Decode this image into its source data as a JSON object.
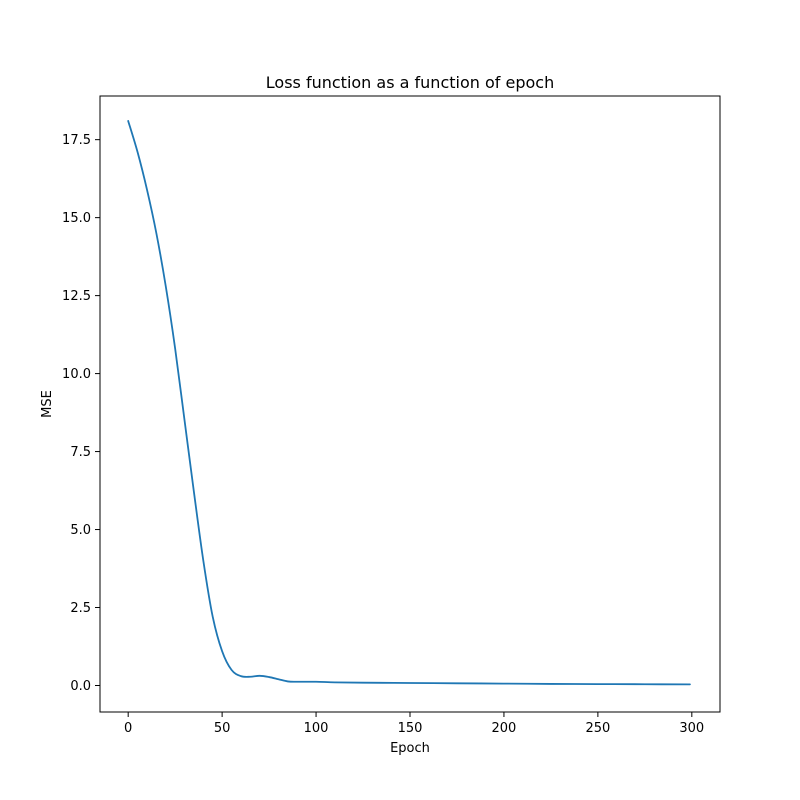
{
  "chart_data": {
    "type": "line",
    "title": "Loss function as a function of epoch",
    "xlabel": "Epoch",
    "ylabel": "MSE",
    "xlim": [
      -15.0,
      315.0
    ],
    "ylim": [
      -0.85,
      18.9
    ],
    "x_ticks": [
      0,
      50,
      100,
      150,
      200,
      250,
      300
    ],
    "x_tick_labels": [
      "0",
      "50",
      "100",
      "150",
      "200",
      "250",
      "300"
    ],
    "y_ticks": [
      0.0,
      2.5,
      5.0,
      7.5,
      10.0,
      12.5,
      15.0,
      17.5
    ],
    "y_tick_labels": [
      "0.0",
      "2.5",
      "5.0",
      "7.5",
      "10.0",
      "12.5",
      "15.0",
      "17.5"
    ],
    "grid": false,
    "series": [
      {
        "color": "#1f77b4",
        "x": [
          0,
          5,
          10,
          15,
          20,
          25,
          30,
          35,
          40,
          45,
          50,
          55,
          60,
          65,
          70,
          75,
          80,
          85,
          90,
          100,
          110,
          125,
          150,
          175,
          200,
          225,
          250,
          275,
          299
        ],
        "y": [
          18.1,
          17.1,
          15.9,
          14.5,
          12.8,
          10.8,
          8.5,
          6.2,
          4.0,
          2.2,
          1.1,
          0.5,
          0.3,
          0.28,
          0.31,
          0.27,
          0.2,
          0.13,
          0.12,
          0.12,
          0.1,
          0.09,
          0.08,
          0.07,
          0.06,
          0.05,
          0.045,
          0.04,
          0.035
        ]
      }
    ]
  }
}
